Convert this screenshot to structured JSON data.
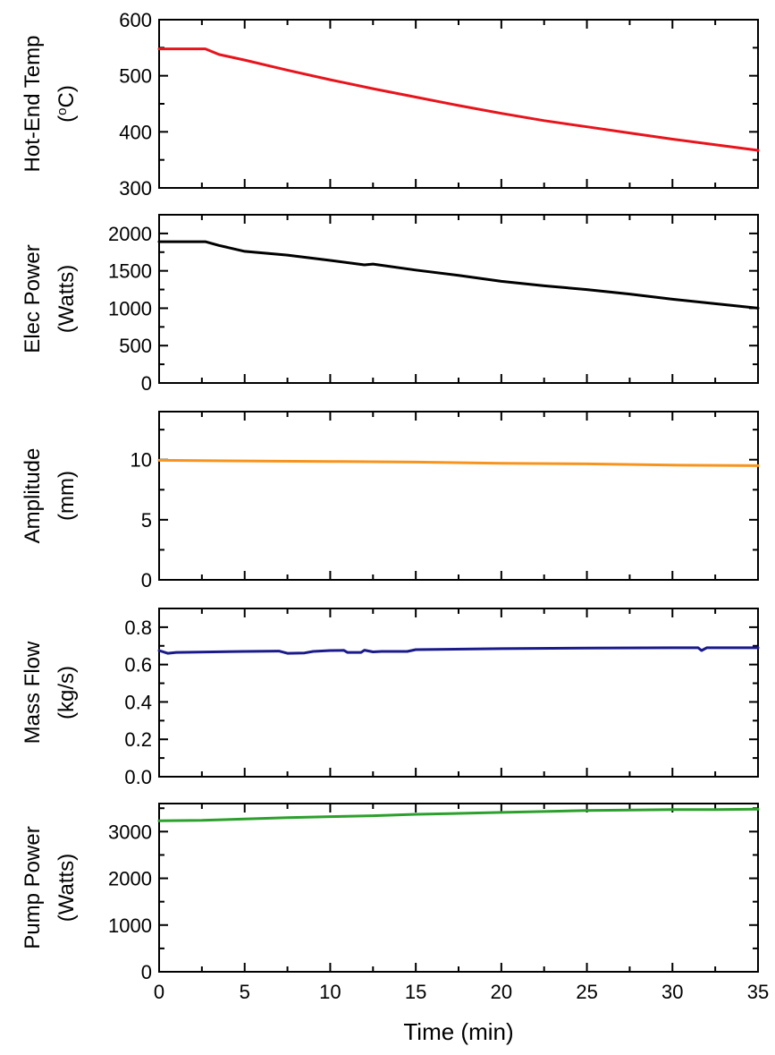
{
  "chart_data": [
    {
      "type": "line",
      "ylabel": [
        "Hot-End Temp",
        "(oC)"
      ],
      "ylim": [
        300,
        600
      ],
      "yticks": [
        300,
        400,
        500,
        600
      ],
      "xlim": [
        0,
        35
      ],
      "color": "#e8141c",
      "series": [
        {
          "x": [
            0,
            2.7,
            3.5,
            5,
            7.5,
            10,
            12.5,
            15,
            17.5,
            20,
            22.5,
            25,
            27.5,
            30,
            32.5,
            35
          ],
          "values": [
            548,
            548,
            538,
            528,
            510,
            493,
            477,
            462,
            447,
            433,
            420,
            409,
            398,
            387,
            377,
            367
          ]
        }
      ]
    },
    {
      "type": "line",
      "ylabel": [
        "Elec Power",
        "(Watts)"
      ],
      "ylim": [
        0,
        2250
      ],
      "yticks": [
        0,
        500,
        1000,
        1500,
        2000
      ],
      "xlim": [
        0,
        35
      ],
      "color": "#000000",
      "series": [
        {
          "x": [
            0,
            2.7,
            3.5,
            5,
            7.5,
            10,
            12,
            12.5,
            15,
            17.5,
            20,
            22.5,
            25,
            27.5,
            30,
            32.5,
            35
          ],
          "values": [
            1890,
            1890,
            1840,
            1760,
            1710,
            1640,
            1580,
            1590,
            1510,
            1440,
            1360,
            1300,
            1250,
            1190,
            1120,
            1060,
            1000
          ]
        }
      ]
    },
    {
      "type": "line",
      "ylabel": [
        "Amplitude",
        "(mm)"
      ],
      "ylim": [
        0,
        14
      ],
      "yticks": [
        0,
        5,
        10
      ],
      "xlim": [
        0,
        35
      ],
      "color": "#f7941d",
      "series": [
        {
          "x": [
            0,
            5,
            10,
            15,
            20,
            25,
            30,
            35
          ],
          "values": [
            9.95,
            9.9,
            9.85,
            9.8,
            9.7,
            9.65,
            9.55,
            9.5
          ]
        }
      ]
    },
    {
      "type": "line",
      "ylabel": [
        "Mass Flow",
        "(kg/s)"
      ],
      "ylim": [
        0,
        0.9
      ],
      "yticks": [
        0.0,
        0.2,
        0.4,
        0.6,
        0.8
      ],
      "xlim": [
        0,
        35
      ],
      "color": "#1a1a8c",
      "series": [
        {
          "x": [
            0,
            0.5,
            1,
            5,
            7,
            7.5,
            8.5,
            9,
            10,
            10.8,
            11,
            11.8,
            12,
            12.5,
            13,
            14.5,
            15,
            20,
            25,
            30,
            31.5,
            31.7,
            32,
            35
          ],
          "values": [
            0.675,
            0.66,
            0.665,
            0.67,
            0.672,
            0.66,
            0.662,
            0.67,
            0.675,
            0.676,
            0.665,
            0.665,
            0.677,
            0.668,
            0.67,
            0.67,
            0.68,
            0.685,
            0.688,
            0.69,
            0.69,
            0.675,
            0.69,
            0.69
          ]
        }
      ]
    },
    {
      "type": "line",
      "ylabel": [
        "Pump Power",
        "(Watts)"
      ],
      "ylim": [
        0,
        3600
      ],
      "yticks": [
        0,
        1000,
        2000,
        3000
      ],
      "xlim": [
        0,
        35
      ],
      "color": "#2ca02c",
      "series": [
        {
          "x": [
            0,
            2.5,
            5,
            7.5,
            10,
            12.5,
            15,
            17.5,
            20,
            22.5,
            25,
            27.5,
            30,
            32.5,
            35
          ],
          "values": [
            3230,
            3240,
            3270,
            3300,
            3320,
            3340,
            3370,
            3390,
            3410,
            3430,
            3450,
            3460,
            3470,
            3470,
            3480
          ]
        }
      ]
    }
  ],
  "xaxis": {
    "label": "Time (min)",
    "ticks": [
      0,
      5,
      10,
      15,
      20,
      25,
      30,
      35
    ]
  }
}
